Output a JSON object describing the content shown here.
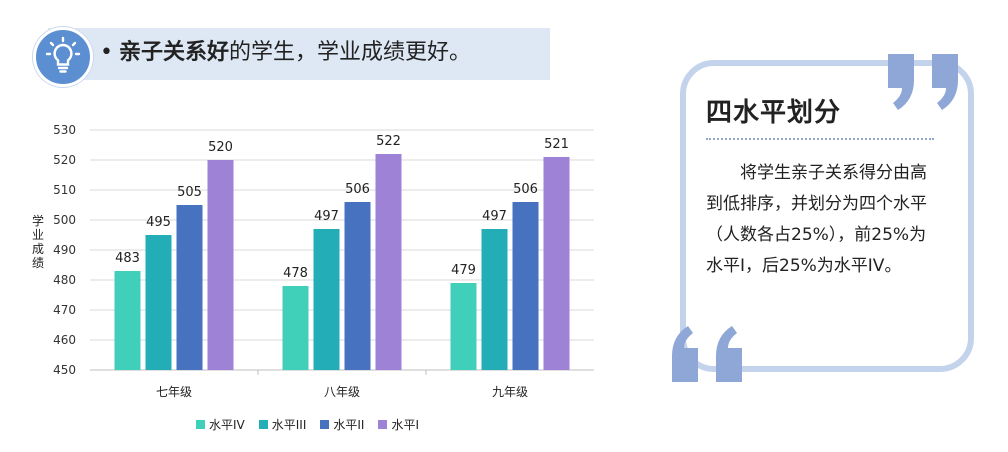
{
  "header": {
    "bullet": "•",
    "bold_text": "亲子关系好",
    "rest_text": "的学生，学业成绩更好。",
    "icon": "lightbulb-icon"
  },
  "chart_data": {
    "type": "bar",
    "ylabel": "学业成绩",
    "ylim": [
      450,
      530
    ],
    "yticks": [
      450,
      460,
      470,
      480,
      490,
      500,
      510,
      520,
      530
    ],
    "grid": true,
    "legend_position": "bottom",
    "categories": [
      "七年级",
      "八年级",
      "九年级"
    ],
    "series": [
      {
        "name": "水平IV",
        "color": "#40cfb8",
        "values": [
          483,
          478,
          479
        ]
      },
      {
        "name": "水平III",
        "color": "#23adb7",
        "values": [
          495,
          497,
          497
        ]
      },
      {
        "name": "水平II",
        "color": "#4672c0",
        "values": [
          505,
          506,
          506
        ]
      },
      {
        "name": "水平I",
        "color": "#9e82d6",
        "values": [
          520,
          522,
          521
        ]
      }
    ]
  },
  "panel": {
    "title": "四水平划分",
    "text": "将学生亲子关系得分由高到低排序，并划分为四个水平（人数各占25%），前25%为水平I，后25%为水平IV。",
    "border_color": "#c2d3eb",
    "quote_color": "#8ea7d6"
  }
}
